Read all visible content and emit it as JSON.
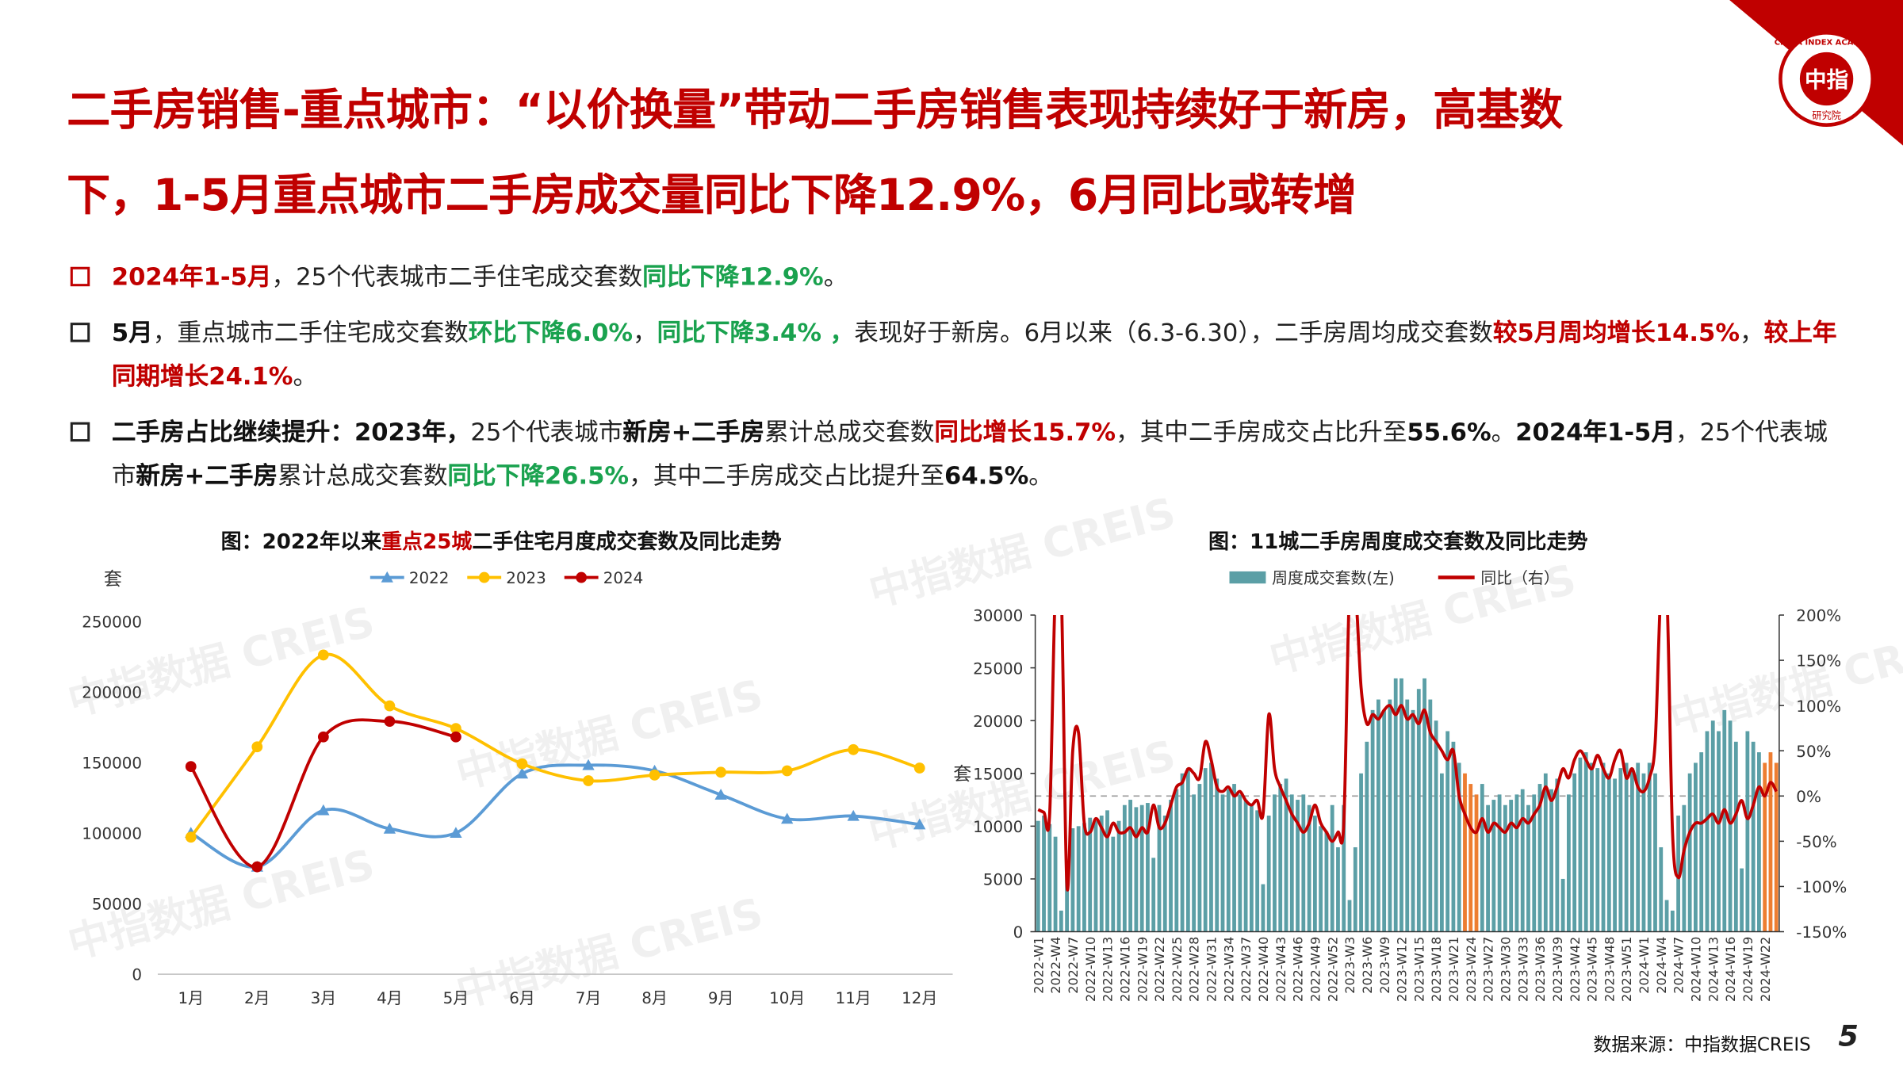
{
  "header": {
    "title_lines": [
      "二手房销售-重点城市：“以价换量”带动二手房销售表现持续好于新房，高基数",
      "下，1-5月重点城市二手房成交量同比下降12.9%，6月同比或转增"
    ]
  },
  "bullets": [
    {
      "runs": [
        {
          "text": "2024年1-5月",
          "style": "red"
        },
        {
          "text": "，25个代表城市二手住宅成交套数"
        },
        {
          "text": "同比下降12.9%",
          "style": "green"
        },
        {
          "text": "。"
        }
      ]
    },
    {
      "runs": [
        {
          "text": "5月",
          "style": "bold"
        },
        {
          "text": "，重点城市二手住宅成交套数"
        },
        {
          "text": "环比下降6.0%",
          "style": "green"
        },
        {
          "text": "，"
        },
        {
          "text": "同比下降3.4% ，",
          "style": "green"
        },
        {
          "text": "表现好于新房。6月以来（6.3-6.30），二手房周均成交套数"
        },
        {
          "text": "较5月周均增长14.5%",
          "style": "red"
        },
        {
          "text": "，"
        },
        {
          "text": "较上年同期增长24.1%",
          "style": "red"
        },
        {
          "text": "。"
        }
      ]
    },
    {
      "runs": [
        {
          "text": "二手房占比继续提升：2023年，",
          "style": "bold"
        },
        {
          "text": "25个代表城市"
        },
        {
          "text": "新房+二手房",
          "style": "bold"
        },
        {
          "text": "累计总成交套数"
        },
        {
          "text": "同比增长15.7%",
          "style": "red"
        },
        {
          "text": "，其中二手房成交占比升至"
        },
        {
          "text": "55.6%",
          "style": "bold"
        },
        {
          "text": "。"
        },
        {
          "text": "2024年1-5月",
          "style": "bold"
        },
        {
          "text": "，25个代表城市"
        },
        {
          "text": "新房+二手房",
          "style": "bold"
        },
        {
          "text": "累计总成交套数"
        },
        {
          "text": "同比下降26.5%",
          "style": "green"
        },
        {
          "text": "，其中二手房成交占比提升至"
        },
        {
          "text": "64.5%",
          "style": "bold"
        },
        {
          "text": "。"
        }
      ]
    }
  ],
  "chart_data": [
    {
      "type": "line",
      "title": [
        {
          "text": "图：2022年以来"
        },
        {
          "text": "重点25城",
          "color": "#c00000"
        },
        {
          "text": "二手住宅月度成交套数及同比走势"
        }
      ],
      "y_label": "套",
      "categories": [
        "1月",
        "2月",
        "3月",
        "4月",
        "5月",
        "6月",
        "7月",
        "8月",
        "9月",
        "10月",
        "11月",
        "12月"
      ],
      "series": [
        {
          "name": "2022",
          "color": "#5b9bd5",
          "marker": "triangle",
          "values": [
            100000,
            76000,
            116000,
            103000,
            100000,
            142000,
            148000,
            144000,
            127000,
            110000,
            112000,
            106000
          ]
        },
        {
          "name": "2023",
          "color": "#ffc000",
          "marker": "circle",
          "values": [
            97000,
            161000,
            226000,
            190000,
            174000,
            149000,
            137000,
            141000,
            143000,
            144000,
            159000,
            146000
          ]
        },
        {
          "name": "2024",
          "color": "#c00000",
          "marker": "circle",
          "values": [
            147000,
            76000,
            168000,
            179000,
            168000,
            null,
            null,
            null,
            null,
            null,
            null,
            null
          ]
        }
      ],
      "ylim": [
        0,
        250000
      ],
      "yticks": [
        0,
        50000,
        100000,
        150000,
        200000,
        250000
      ],
      "smooth": true
    },
    {
      "type": "combo",
      "title": [
        {
          "text": "图：11城二手房周度成交套数及同比走势"
        }
      ],
      "y_label": "套",
      "categories": [
        "2022-W1",
        null,
        null,
        "2022-W4",
        null,
        null,
        "2022-W7",
        null,
        null,
        "2022-W10",
        null,
        null,
        "2022-W13",
        null,
        null,
        "2022-W16",
        null,
        null,
        "2022-W19",
        null,
        null,
        "2022-W22",
        null,
        null,
        "2022-W25",
        null,
        null,
        "2022-W28",
        null,
        null,
        "2022-W31",
        null,
        null,
        "2022-W34",
        null,
        null,
        "2022-W37",
        null,
        null,
        "2022-W40",
        null,
        null,
        "2022-W43",
        null,
        null,
        "2022-W46",
        null,
        null,
        "2022-W49",
        null,
        null,
        "2022-W52",
        null,
        null,
        "2023-W3",
        null,
        null,
        "2023-W6",
        null,
        null,
        "2023-W9",
        null,
        null,
        "2023-W12",
        null,
        null,
        "2023-W15",
        null,
        null,
        "2023-W18",
        null,
        null,
        "2023-W21",
        null,
        null,
        "2023-W24",
        null,
        null,
        "2023-W27",
        null,
        null,
        "2023-W30",
        null,
        null,
        "2023-W33",
        null,
        null,
        "2023-W36",
        null,
        null,
        "2023-W39",
        null,
        null,
        "2023-W42",
        null,
        null,
        "2023-W45",
        null,
        null,
        "2023-W48",
        null,
        null,
        "2023-W51",
        null,
        null,
        "2024-W1",
        null,
        null,
        "2024-W4",
        null,
        null,
        "2024-W7",
        null,
        null,
        "2024-W10",
        null,
        null,
        "2024-W13",
        null,
        null,
        "2024-W16",
        null,
        null,
        "2024-W19",
        null,
        null,
        "2024-W22",
        null,
        null
      ],
      "series": [
        {
          "name": "周度成交套数(左)",
          "type": "bar",
          "color": "#5b9fa6",
          "highlight_color": "#ed7d31",
          "highlight": [
            74,
            75,
            76,
            126,
            127,
            128
          ],
          "values": [
            10500,
            11000,
            10200,
            9000,
            2000,
            5500,
            9800,
            10000,
            10300,
            10800,
            10500,
            11000,
            11500,
            9000,
            10500,
            12000,
            12500,
            11800,
            12000,
            12200,
            7000,
            12000,
            11000,
            12500,
            13500,
            15000,
            15500,
            13000,
            14000,
            15500,
            16000,
            14500,
            13000,
            13500,
            14000,
            13000,
            12500,
            12000,
            11500,
            4500,
            11000,
            13000,
            14000,
            14500,
            13000,
            12500,
            13000,
            12000,
            11000,
            10000,
            9500,
            12000,
            8000,
            12000,
            3000,
            8000,
            15000,
            18000,
            21000,
            22000,
            21000,
            22000,
            24000,
            24000,
            22000,
            21000,
            23000,
            24000,
            22000,
            20000,
            15000,
            19000,
            18000,
            16000,
            15000,
            14000,
            13000,
            14000,
            12000,
            12500,
            13000,
            12000,
            12500,
            13000,
            13500,
            12000,
            13000,
            14000,
            15000,
            13500,
            14500,
            5000,
            13000,
            15000,
            16500,
            17000,
            16000,
            15500,
            16000,
            15000,
            14500,
            15500,
            16000,
            15500,
            16000,
            15000,
            16000,
            15000,
            8000,
            3000,
            2000,
            11000,
            12000,
            15000,
            16000,
            17000,
            19000,
            20000,
            19000,
            21000,
            20000,
            18000,
            6000,
            19000,
            18000,
            17000,
            16000,
            17000,
            16000
          ]
        },
        {
          "name": "同比（右）",
          "type": "line",
          "axis": "y2",
          "color": "#c00000",
          "values": [
            -15,
            -18,
            -20,
            230,
            230,
            -100,
            50,
            70,
            -30,
            -40,
            -25,
            -35,
            -45,
            -30,
            -40,
            -40,
            -35,
            -45,
            -35,
            -40,
            -10,
            -35,
            -30,
            -10,
            10,
            15,
            30,
            25,
            20,
            60,
            40,
            10,
            5,
            10,
            0,
            5,
            -5,
            -10,
            -5,
            -20,
            90,
            30,
            10,
            -5,
            -20,
            -30,
            -40,
            -30,
            -10,
            -30,
            -40,
            -50,
            -40,
            -30,
            230,
            230,
            120,
            80,
            90,
            85,
            95,
            100,
            90,
            100,
            85,
            90,
            80,
            95,
            70,
            60,
            50,
            40,
            50,
            0,
            -20,
            -35,
            -40,
            -25,
            -40,
            -30,
            -35,
            -40,
            -30,
            -35,
            -25,
            -30,
            -20,
            -10,
            10,
            -5,
            10,
            30,
            20,
            40,
            50,
            40,
            30,
            45,
            30,
            20,
            40,
            50,
            20,
            30,
            10,
            5,
            20,
            60,
            230,
            230,
            -40,
            -90,
            -60,
            -40,
            -30,
            -30,
            -25,
            -20,
            -30,
            -15,
            -30,
            -20,
            -5,
            -25,
            -10,
            10,
            0,
            15,
            5
          ]
        }
      ],
      "ylim": [
        0,
        30000
      ],
      "yticks": [
        0,
        5000,
        10000,
        15000,
        20000,
        25000,
        30000
      ],
      "y2lim": [
        -150,
        200
      ],
      "y2ticks": [
        {
          "value": -150,
          "label": "-150%"
        },
        {
          "value": -100,
          "label": "-100%"
        },
        {
          "value": -50,
          "label": "-50%"
        },
        {
          "value": 0,
          "label": "0%"
        },
        {
          "value": 50,
          "label": "50%"
        },
        {
          "value": 100,
          "label": "100%"
        },
        {
          "value": 150,
          "label": "150%"
        },
        {
          "value": 200,
          "label": "200%"
        }
      ],
      "zero_line": true,
      "smooth": true
    }
  ],
  "footer": {
    "source": "数据来源：中指数据CREIS",
    "page": "5"
  },
  "logo": {
    "center": "中指",
    "ring": "CHINA INDEX ACADEMY",
    "bottom": "研究院"
  },
  "watermark": "中指数据 CREIS"
}
